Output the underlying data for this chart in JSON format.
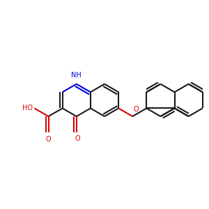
{
  "bg": "#ffffff",
  "bc": "#1a1a1a",
  "nc": "#0000dd",
  "oc": "#dd0000",
  "lw": 1.5,
  "doff": 0.012,
  "fs": 7.0,
  "xlim": [
    0.02,
    0.98
  ],
  "ylim": [
    0.2,
    0.88
  ]
}
